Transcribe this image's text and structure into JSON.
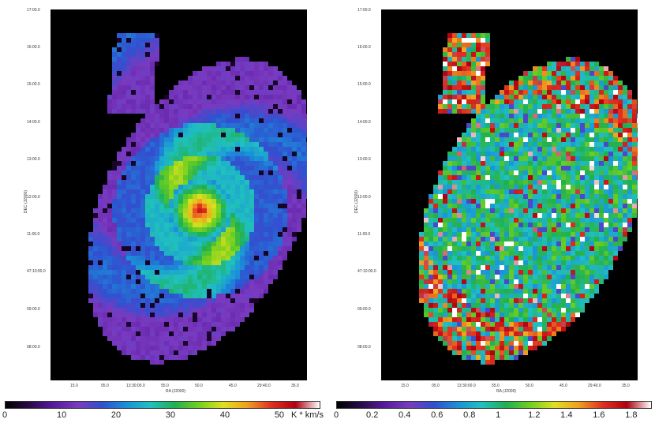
{
  "colors": {
    "background": "#000000",
    "colormap": [
      "#000000",
      "#2a0a4a",
      "#5a1aa0",
      "#7a3ac0",
      "#3050d0",
      "#1a90d8",
      "#20c0c0",
      "#20b050",
      "#70d020",
      "#e0e020",
      "#f0a020",
      "#e03020",
      "#b00010",
      "#ffffff"
    ]
  },
  "chart_data": [
    {
      "type": "heatmap",
      "title": "",
      "xlabel": "RA (J2000)",
      "ylabel": "DEC (J2000)",
      "x_ticks": [
        "15.0",
        "05.0",
        "13:30:00.0",
        "55.0",
        "50.0",
        "45.0",
        "29:40.0",
        "35.0"
      ],
      "y_ticks": [
        "17:00.0",
        "16:00.0",
        "15:00.0",
        "14:00.0",
        "13:00.0",
        "12:00.0",
        "11:00.0",
        "47:10:00.0",
        "09:00.0",
        "08:00.0"
      ],
      "colorbar": {
        "ticks": [
          "0",
          "10",
          "20",
          "30",
          "40",
          "50"
        ],
        "range": [
          0,
          58
        ],
        "unit": "K * km/s"
      },
      "description_values": {
        "peak_center": 55,
        "ring_level": 25,
        "disk_level": 10
      }
    },
    {
      "type": "heatmap",
      "title": "",
      "xlabel": "RA (J2000)",
      "ylabel": "DEC (J2000)",
      "x_ticks": [
        "15.0",
        "05.0",
        "13:30:00.0",
        "55.0",
        "50.0",
        "45.0",
        "29:40.0",
        "35.0"
      ],
      "y_ticks": [
        "17:00.0",
        "16:00.0",
        "15:00.0",
        "14:00.0",
        "13:00.0",
        "12:00.0",
        "11:00.0",
        "47:10:00.0",
        "09:00.0",
        "08:00.0"
      ],
      "colorbar": {
        "ticks": [
          "0",
          "0.2",
          "0.4",
          "0.6",
          "0.8",
          "1",
          "1.2",
          "1.4",
          "1.6",
          "1.8"
        ],
        "range": [
          0,
          1.95
        ],
        "unit": ""
      },
      "description_values": {
        "typical_ratio": 1.0
      }
    }
  ]
}
